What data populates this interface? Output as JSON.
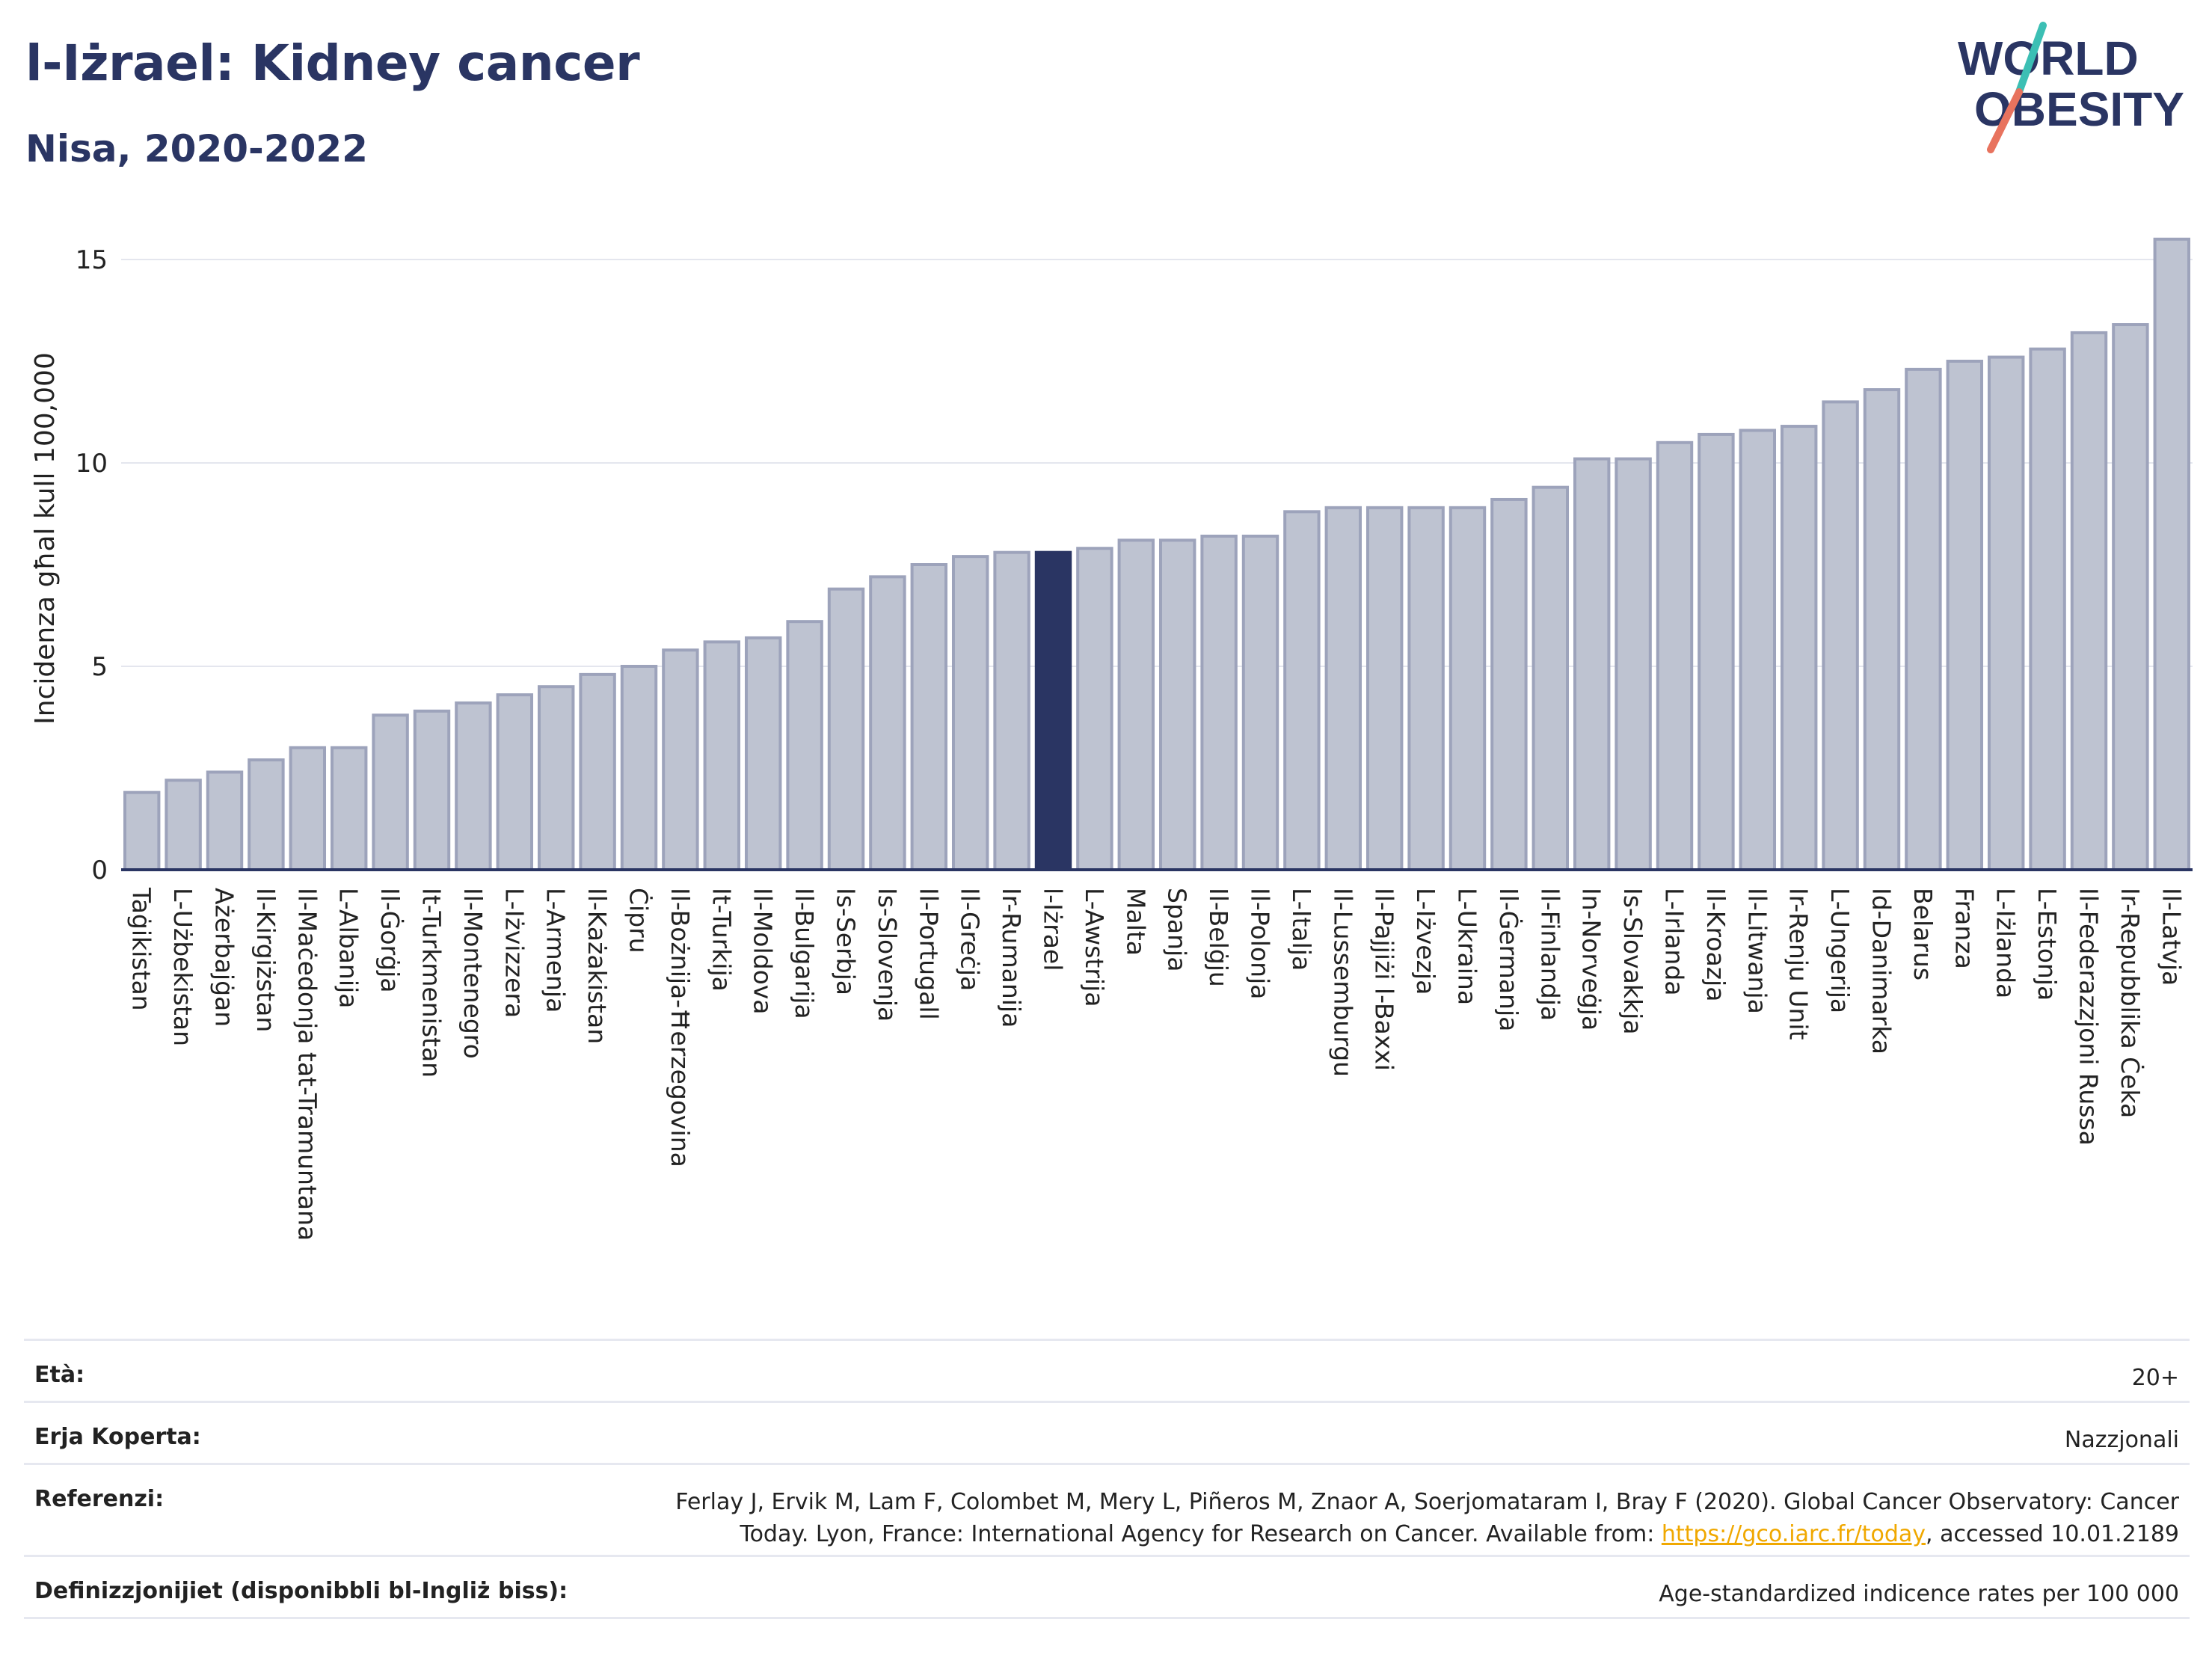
{
  "header": {
    "title": "l-Iżrael: Kidney cancer",
    "subtitle": "Nisa, 2020-2022",
    "logo_line1": "WORLD",
    "logo_line2": "OBESITY"
  },
  "colors": {
    "bar": "#bec3d1",
    "bar_stroke": "#9da3bb",
    "highlight": "#2a3563",
    "title": "#2a3563",
    "logo_teal": "#3cbfb4",
    "logo_coral": "#e8735e",
    "link": "#f0a800"
  },
  "chart_data": {
    "type": "bar",
    "ylabel": "Incidenza għal kull 100,000",
    "xlabel": "",
    "ylim": [
      0,
      16
    ],
    "yticks": [
      0,
      5,
      10,
      15
    ],
    "grid": true,
    "highlight": "l-Iżrael",
    "categories": [
      "Taġikistan",
      "L-Użbekistan",
      "Ażerbajġan",
      "Il-Kirgiżstan",
      "Il-Maċedonja tat-Tramuntana",
      "L-Albanija",
      "Il-Ġorġja",
      "It-Turkmenistan",
      "Il-Montenegro",
      "L-Iżvizzera",
      "L-Armenja",
      "Il-Każakistan",
      "Ċipru",
      "Il-Bożnija-Ħerzegovina",
      "It-Turkija",
      "Il-Moldova",
      "Il-Bulgarija",
      "Is-Serbja",
      "Is-Slovenja",
      "Il-Portugall",
      "Il-Greċja",
      "Ir-Rumanija",
      "l-Iżrael",
      "L-Awstrija",
      "Malta",
      "Spanja",
      "Il-Belġju",
      "Il-Polonja",
      "L-Italja",
      "Il-Lussemburgu",
      "Il-Pajjiżi l-Baxxi",
      "L-Iżvezja",
      "L-Ukraina",
      "Il-Ġermanja",
      "Il-Finlandja",
      "In-Norveġja",
      "Is-Slovakkja",
      "L-Irlanda",
      "Il-Kroazja",
      "Il-Litwanja",
      "Ir-Renju Unit",
      "L-Ungerija",
      "Id-Danimarka",
      "Belarus",
      "Franza",
      "L-Iżlanda",
      "L-Estonja",
      "Il-Federazzjoni Russa",
      "Ir-Repubblika Ċeka",
      "Il-Latvja"
    ],
    "values": [
      1.9,
      2.2,
      2.4,
      2.7,
      3.0,
      3.0,
      3.8,
      3.9,
      4.1,
      4.3,
      4.5,
      4.8,
      5.0,
      5.4,
      5.6,
      5.7,
      6.1,
      6.9,
      7.2,
      7.5,
      7.7,
      7.8,
      7.8,
      7.9,
      8.1,
      8.1,
      8.2,
      8.2,
      8.8,
      8.9,
      8.9,
      8.9,
      8.9,
      9.1,
      9.4,
      10.1,
      10.1,
      10.5,
      10.7,
      10.8,
      10.9,
      11.5,
      11.8,
      12.3,
      12.5,
      12.6,
      12.8,
      13.2,
      13.4,
      15.5
    ]
  },
  "info": {
    "age_label": "Età:",
    "age_value": "20+",
    "coverage_label": "Erja Koperta:",
    "coverage_value": "Nazzjonali",
    "references_label": "Referenzi:",
    "references_line1": "Ferlay J, Ervik M, Lam F, Colombet M, Mery L, Piñeros M, Znaor A, Soerjomataram I, Bray F (2020). Global Cancer Observatory: Cancer",
    "references_line2_pre": "Today. Lyon, France: International Agency for Research on Cancer. Available from: ",
    "references_link": "https://gco.iarc.fr/today",
    "references_line2_post": ", accessed 10.01.2189",
    "definitions_label": "Definizzjonijiet (disponibbli bl-Ingliż biss):",
    "definitions_value": "Age-standardized indicence rates per 100 000"
  }
}
